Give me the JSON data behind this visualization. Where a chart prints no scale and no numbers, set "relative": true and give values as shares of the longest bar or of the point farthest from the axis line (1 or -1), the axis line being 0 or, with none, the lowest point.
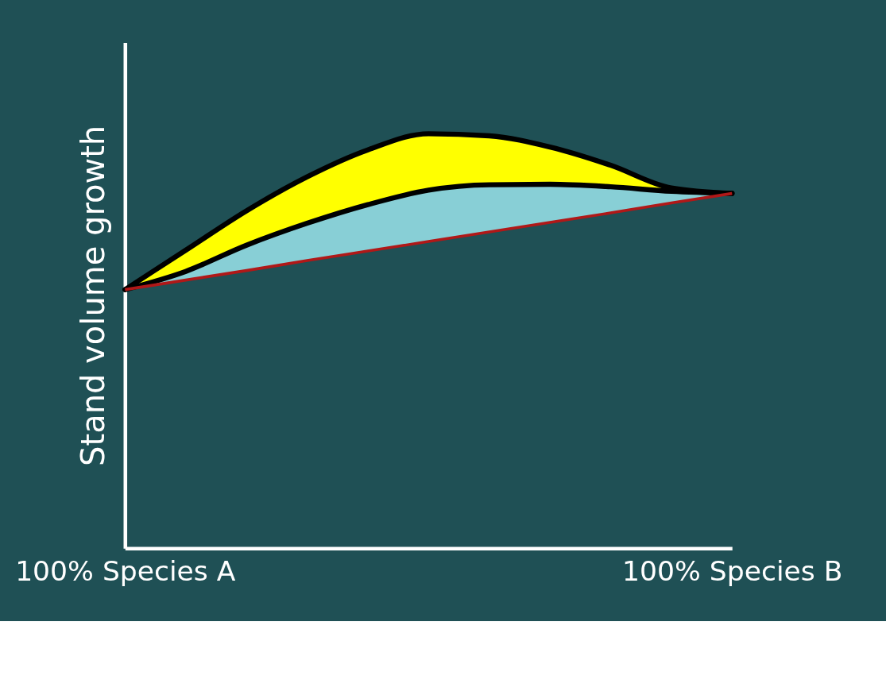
{
  "chart_data": {
    "type": "area",
    "relative": true,
    "ylabel": "Stand volume growth",
    "categories": [
      "100% Species A",
      null,
      null,
      null,
      null,
      null,
      null,
      null,
      null,
      null,
      "100% Species B"
    ],
    "series": [
      {
        "color": "#ffff00",
        "values": [
          0.624,
          0.719,
          0.814,
          0.896,
          0.961,
          1.0,
          0.995,
          0.968,
          0.924,
          0.869,
          0.856
        ]
      },
      {
        "color": "#88cfd6",
        "values": [
          0.624,
          0.668,
          0.731,
          0.784,
          0.829,
          0.864,
          0.877,
          0.878,
          0.872,
          0.861,
          0.856
        ]
      },
      {
        "type": "line",
        "color": "#b01818",
        "values": [
          0.624,
          0.647,
          0.67,
          0.694,
          0.717,
          0.74,
          0.763,
          0.786,
          0.809,
          0.833,
          0.856
        ]
      }
    ],
    "grid": false
  }
}
